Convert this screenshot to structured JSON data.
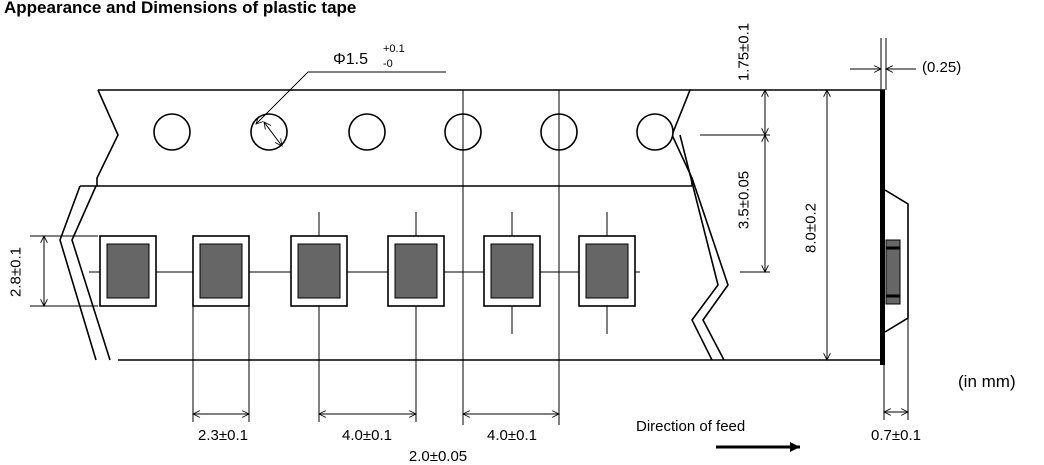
{
  "title": "Appearance and Dimensions of plastic tape",
  "unit_note": "(in mm)",
  "hole_diameter": {
    "main": "Φ1.5",
    "tol_plus": "+0.1",
    "tol_minus": "-0"
  },
  "dimensions": {
    "edge_to_hole": "1.75±0.1",
    "hole_to_pocket_center": "3.5±0.05",
    "tape_width": "8.0±0.2",
    "pocket_length": "2.8±0.1",
    "pocket_width": "2.3±0.1",
    "pocket_pitch": "4.0±0.1",
    "hole_pitch": "4.0±0.1",
    "hole_to_pocket_offset": "2.0±0.05",
    "cover_tape_thickness": "(0.25)",
    "carrier_thickness": "0.7±0.1"
  },
  "feed_label": "Direction of feed",
  "colors": {
    "line": "#000000",
    "chip": "#666666",
    "background": "#ffffff"
  }
}
